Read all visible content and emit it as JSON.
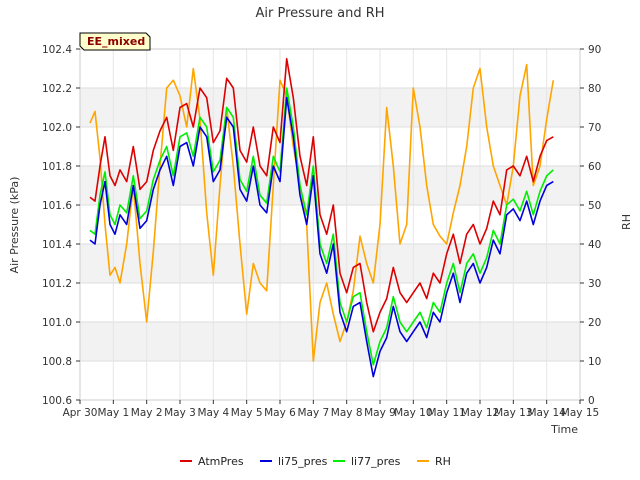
{
  "chart_data": {
    "type": "line",
    "title": "Air Pressure and RH",
    "site_tag": "EE_mixed",
    "xlabel": "Time",
    "ylabel_left": "Air Pressure (kPa)",
    "ylabel_right": "RH",
    "x_ticks": [
      "Apr 30",
      "May 1",
      "May 2",
      "May 3",
      "May 4",
      "May 5",
      "May 6",
      "May 7",
      "May 8",
      "May 9",
      "May 10",
      "May 11",
      "May 12",
      "May 13",
      "May 14",
      "May 15"
    ],
    "xlim": [
      0,
      15
    ],
    "ylim_left": [
      100.6,
      102.4
    ],
    "ylim_right": [
      0,
      90
    ],
    "y_ticks_left": [
      "100.6",
      "100.8",
      "101.0",
      "101.2",
      "101.4",
      "101.6",
      "101.8",
      "102.0",
      "102.2",
      "102.4"
    ],
    "y_ticks_right": [
      "0",
      "10",
      "20",
      "30",
      "40",
      "50",
      "60",
      "70",
      "80",
      "90"
    ],
    "grid": true,
    "banded_background": true,
    "legend_position": "bottom",
    "series": [
      {
        "name": "AtmPres",
        "axis": "left",
        "color": "#dd0000",
        "x": [
          0.3,
          0.45,
          0.6,
          0.75,
          0.9,
          1.05,
          1.2,
          1.4,
          1.6,
          1.8,
          2.0,
          2.2,
          2.4,
          2.6,
          2.8,
          3.0,
          3.2,
          3.4,
          3.6,
          3.8,
          4.0,
          4.2,
          4.4,
          4.6,
          4.8,
          5.0,
          5.2,
          5.4,
          5.6,
          5.8,
          6.0,
          6.2,
          6.4,
          6.6,
          6.8,
          7.0,
          7.2,
          7.4,
          7.6,
          7.8,
          8.0,
          8.2,
          8.4,
          8.6,
          8.8,
          9.0,
          9.2,
          9.4,
          9.6,
          9.8,
          10.0,
          10.2,
          10.4,
          10.6,
          10.8,
          11.0,
          11.2,
          11.4,
          11.6,
          11.8,
          12.0,
          12.2,
          12.4,
          12.6,
          12.8,
          13.0,
          13.2,
          13.4,
          13.6,
          13.8,
          14.0,
          14.2
        ],
        "y": [
          101.64,
          101.62,
          101.8,
          101.95,
          101.75,
          101.7,
          101.78,
          101.72,
          101.9,
          101.68,
          101.72,
          101.88,
          101.98,
          102.05,
          101.88,
          102.1,
          102.12,
          102.0,
          102.2,
          102.15,
          101.92,
          101.98,
          102.25,
          102.2,
          101.88,
          101.82,
          102.0,
          101.8,
          101.75,
          102.0,
          101.92,
          102.35,
          102.15,
          101.85,
          101.7,
          101.95,
          101.55,
          101.45,
          101.6,
          101.25,
          101.15,
          101.28,
          101.3,
          101.1,
          100.95,
          101.05,
          101.12,
          101.28,
          101.15,
          101.1,
          101.15,
          101.2,
          101.12,
          101.25,
          101.2,
          101.35,
          101.45,
          101.3,
          101.45,
          101.5,
          101.4,
          101.48,
          101.62,
          101.55,
          101.78,
          101.8,
          101.75,
          101.85,
          101.72,
          101.85,
          101.93,
          101.95
        ]
      },
      {
        "name": "li75_pres",
        "axis": "left",
        "color": "#0000dd",
        "x": [
          0.3,
          0.45,
          0.6,
          0.75,
          0.9,
          1.05,
          1.2,
          1.4,
          1.6,
          1.8,
          2.0,
          2.2,
          2.4,
          2.6,
          2.8,
          3.0,
          3.2,
          3.4,
          3.6,
          3.8,
          4.0,
          4.2,
          4.4,
          4.6,
          4.8,
          5.0,
          5.2,
          5.4,
          5.6,
          5.8,
          6.0,
          6.2,
          6.4,
          6.6,
          6.8,
          7.0,
          7.2,
          7.4,
          7.6,
          7.8,
          8.0,
          8.2,
          8.4,
          8.6,
          8.8,
          9.0,
          9.2,
          9.4,
          9.6,
          9.8,
          10.0,
          10.2,
          10.4,
          10.6,
          10.8,
          11.0,
          11.2,
          11.4,
          11.6,
          11.8,
          12.0,
          12.2,
          12.4,
          12.6,
          12.8,
          13.0,
          13.2,
          13.4,
          13.6,
          13.8,
          14.0,
          14.2
        ],
        "y": [
          101.42,
          101.4,
          101.6,
          101.72,
          101.5,
          101.45,
          101.55,
          101.5,
          101.7,
          101.48,
          101.52,
          101.68,
          101.78,
          101.85,
          101.7,
          101.9,
          101.92,
          101.8,
          102.0,
          101.95,
          101.72,
          101.78,
          102.05,
          102.0,
          101.68,
          101.62,
          101.8,
          101.6,
          101.56,
          101.8,
          101.72,
          102.15,
          101.95,
          101.65,
          101.5,
          101.75,
          101.35,
          101.25,
          101.4,
          101.05,
          100.95,
          101.08,
          101.1,
          100.9,
          100.72,
          100.85,
          100.92,
          101.08,
          100.95,
          100.9,
          100.95,
          101.0,
          100.92,
          101.05,
          101.0,
          101.15,
          101.25,
          101.1,
          101.25,
          101.3,
          101.2,
          101.28,
          101.42,
          101.35,
          101.55,
          101.58,
          101.52,
          101.62,
          101.5,
          101.62,
          101.7,
          101.72
        ]
      },
      {
        "name": "li77_pres",
        "axis": "left",
        "color": "#00ee00",
        "x": [
          0.3,
          0.45,
          0.6,
          0.75,
          0.9,
          1.05,
          1.2,
          1.4,
          1.6,
          1.8,
          2.0,
          2.2,
          2.4,
          2.6,
          2.8,
          3.0,
          3.2,
          3.4,
          3.6,
          3.8,
          4.0,
          4.2,
          4.4,
          4.6,
          4.8,
          5.0,
          5.2,
          5.4,
          5.6,
          5.8,
          6.0,
          6.2,
          6.4,
          6.6,
          6.8,
          7.0,
          7.2,
          7.4,
          7.6,
          7.8,
          8.0,
          8.2,
          8.4,
          8.6,
          8.8,
          9.0,
          9.2,
          9.4,
          9.6,
          9.8,
          10.0,
          10.2,
          10.4,
          10.6,
          10.8,
          11.0,
          11.2,
          11.4,
          11.6,
          11.8,
          12.0,
          12.2,
          12.4,
          12.6,
          12.8,
          13.0,
          13.2,
          13.4,
          13.6,
          13.8,
          14.0,
          14.2
        ],
        "y": [
          101.47,
          101.45,
          101.65,
          101.77,
          101.55,
          101.5,
          101.6,
          101.56,
          101.75,
          101.53,
          101.57,
          101.73,
          101.83,
          101.9,
          101.75,
          101.95,
          101.97,
          101.85,
          102.05,
          102.0,
          101.77,
          101.83,
          102.1,
          102.05,
          101.73,
          101.67,
          101.85,
          101.65,
          101.61,
          101.85,
          101.77,
          102.2,
          102.0,
          101.7,
          101.55,
          101.8,
          101.4,
          101.3,
          101.45,
          101.1,
          101.0,
          101.13,
          101.15,
          100.95,
          100.78,
          100.9,
          100.97,
          101.13,
          101.0,
          100.95,
          101.0,
          101.05,
          100.97,
          101.1,
          101.05,
          101.2,
          101.3,
          101.15,
          101.3,
          101.35,
          101.25,
          101.33,
          101.47,
          101.4,
          101.6,
          101.63,
          101.57,
          101.67,
          101.55,
          101.67,
          101.75,
          101.78
        ]
      },
      {
        "name": "RH",
        "axis": "right",
        "color": "#ffa500",
        "x": [
          0.3,
          0.45,
          0.6,
          0.75,
          0.9,
          1.05,
          1.2,
          1.4,
          1.6,
          1.8,
          2.0,
          2.2,
          2.4,
          2.6,
          2.8,
          3.0,
          3.2,
          3.4,
          3.6,
          3.8,
          4.0,
          4.2,
          4.4,
          4.6,
          4.8,
          5.0,
          5.2,
          5.4,
          5.6,
          5.8,
          6.0,
          6.2,
          6.4,
          6.6,
          6.8,
          7.0,
          7.2,
          7.4,
          7.6,
          7.8,
          8.0,
          8.2,
          8.4,
          8.6,
          8.8,
          9.0,
          9.2,
          9.4,
          9.6,
          9.8,
          10.0,
          10.2,
          10.4,
          10.6,
          10.8,
          11.0,
          11.2,
          11.4,
          11.6,
          11.8,
          12.0,
          12.2,
          12.4,
          12.6,
          12.8,
          13.0,
          13.2,
          13.4,
          13.6,
          13.8,
          14.0,
          14.2
        ],
        "y": [
          71,
          74,
          62,
          45,
          32,
          34,
          30,
          40,
          55,
          35,
          20,
          38,
          60,
          80,
          82,
          78,
          70,
          85,
          72,
          48,
          32,
          55,
          75,
          60,
          40,
          22,
          35,
          30,
          28,
          55,
          82,
          78,
          65,
          55,
          45,
          10,
          25,
          30,
          22,
          15,
          20,
          28,
          42,
          35,
          30,
          45,
          75,
          60,
          40,
          45,
          80,
          70,
          55,
          45,
          42,
          40,
          48,
          55,
          65,
          80,
          85,
          70,
          60,
          55,
          50,
          60,
          78,
          86,
          55,
          60,
          72,
          82
        ]
      }
    ]
  }
}
